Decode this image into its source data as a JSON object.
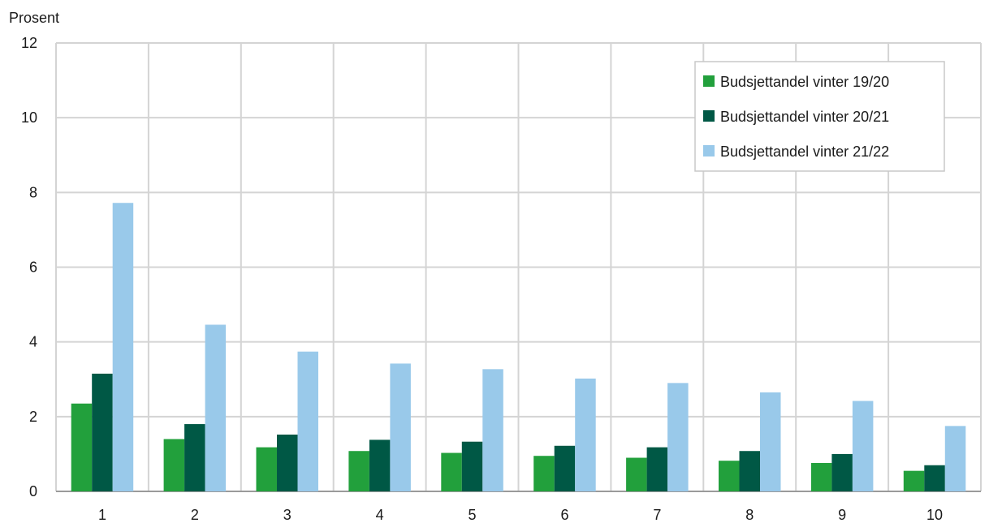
{
  "chart_data": {
    "type": "bar",
    "title": "",
    "xlabel": "",
    "ylabel": "Prosent",
    "ylim": [
      0,
      12
    ],
    "yticks": [
      0,
      2,
      4,
      6,
      8,
      10,
      12
    ],
    "categories": [
      "1",
      "2",
      "3",
      "4",
      "5",
      "6",
      "7",
      "8",
      "9",
      "10"
    ],
    "grid": true,
    "legend_position": "top-right",
    "series": [
      {
        "name": "Budsjettandel vinter 19/20",
        "color": "#22a03c",
        "values": [
          2.35,
          1.4,
          1.18,
          1.08,
          1.03,
          0.95,
          0.9,
          0.82,
          0.76,
          0.55
        ]
      },
      {
        "name": "Budsjettandel vinter 20/21",
        "color": "#005845",
        "values": [
          3.15,
          1.8,
          1.52,
          1.38,
          1.33,
          1.22,
          1.18,
          1.08,
          1.0,
          0.7
        ]
      },
      {
        "name": "Budsjettandel vinter 21/22",
        "color": "#99c9ea",
        "values": [
          7.72,
          4.46,
          3.74,
          3.42,
          3.27,
          3.02,
          2.9,
          2.65,
          2.42,
          1.75
        ]
      }
    ]
  }
}
